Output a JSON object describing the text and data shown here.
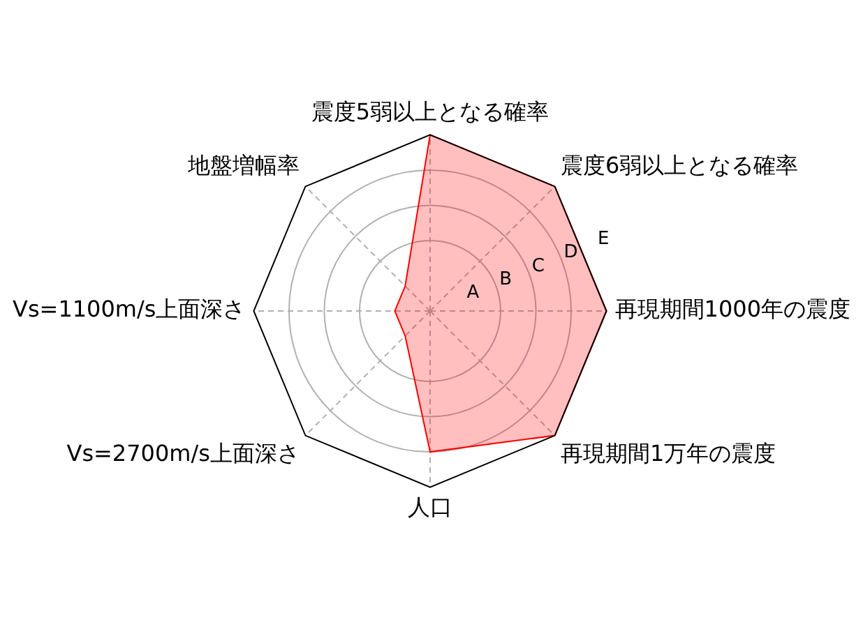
{
  "chart_data": {
    "type": "radar",
    "categories": [
      "震度5弱以上となる確率",
      "震度6弱以上となる確率",
      "再現期間1000年の震度",
      "再現期間1万年の震度",
      "人口",
      "Vs=2700m/s上面深さ",
      "Vs=1100m/s上面深さ",
      "地盤増幅率"
    ],
    "series": [
      {
        "color": "#ff0000",
        "values": [
          5,
          5,
          5,
          5,
          4,
          1,
          1,
          1
        ]
      }
    ],
    "ylim": [
      0,
      5
    ],
    "yticks": [
      {
        "value": 1,
        "label": "A"
      },
      {
        "value": 2,
        "label": "B"
      },
      {
        "value": 3,
        "label": "C"
      },
      {
        "value": 4,
        "label": "D"
      },
      {
        "value": 5,
        "label": "E"
      }
    ],
    "grid": true,
    "marker": "none",
    "legend": false
  }
}
